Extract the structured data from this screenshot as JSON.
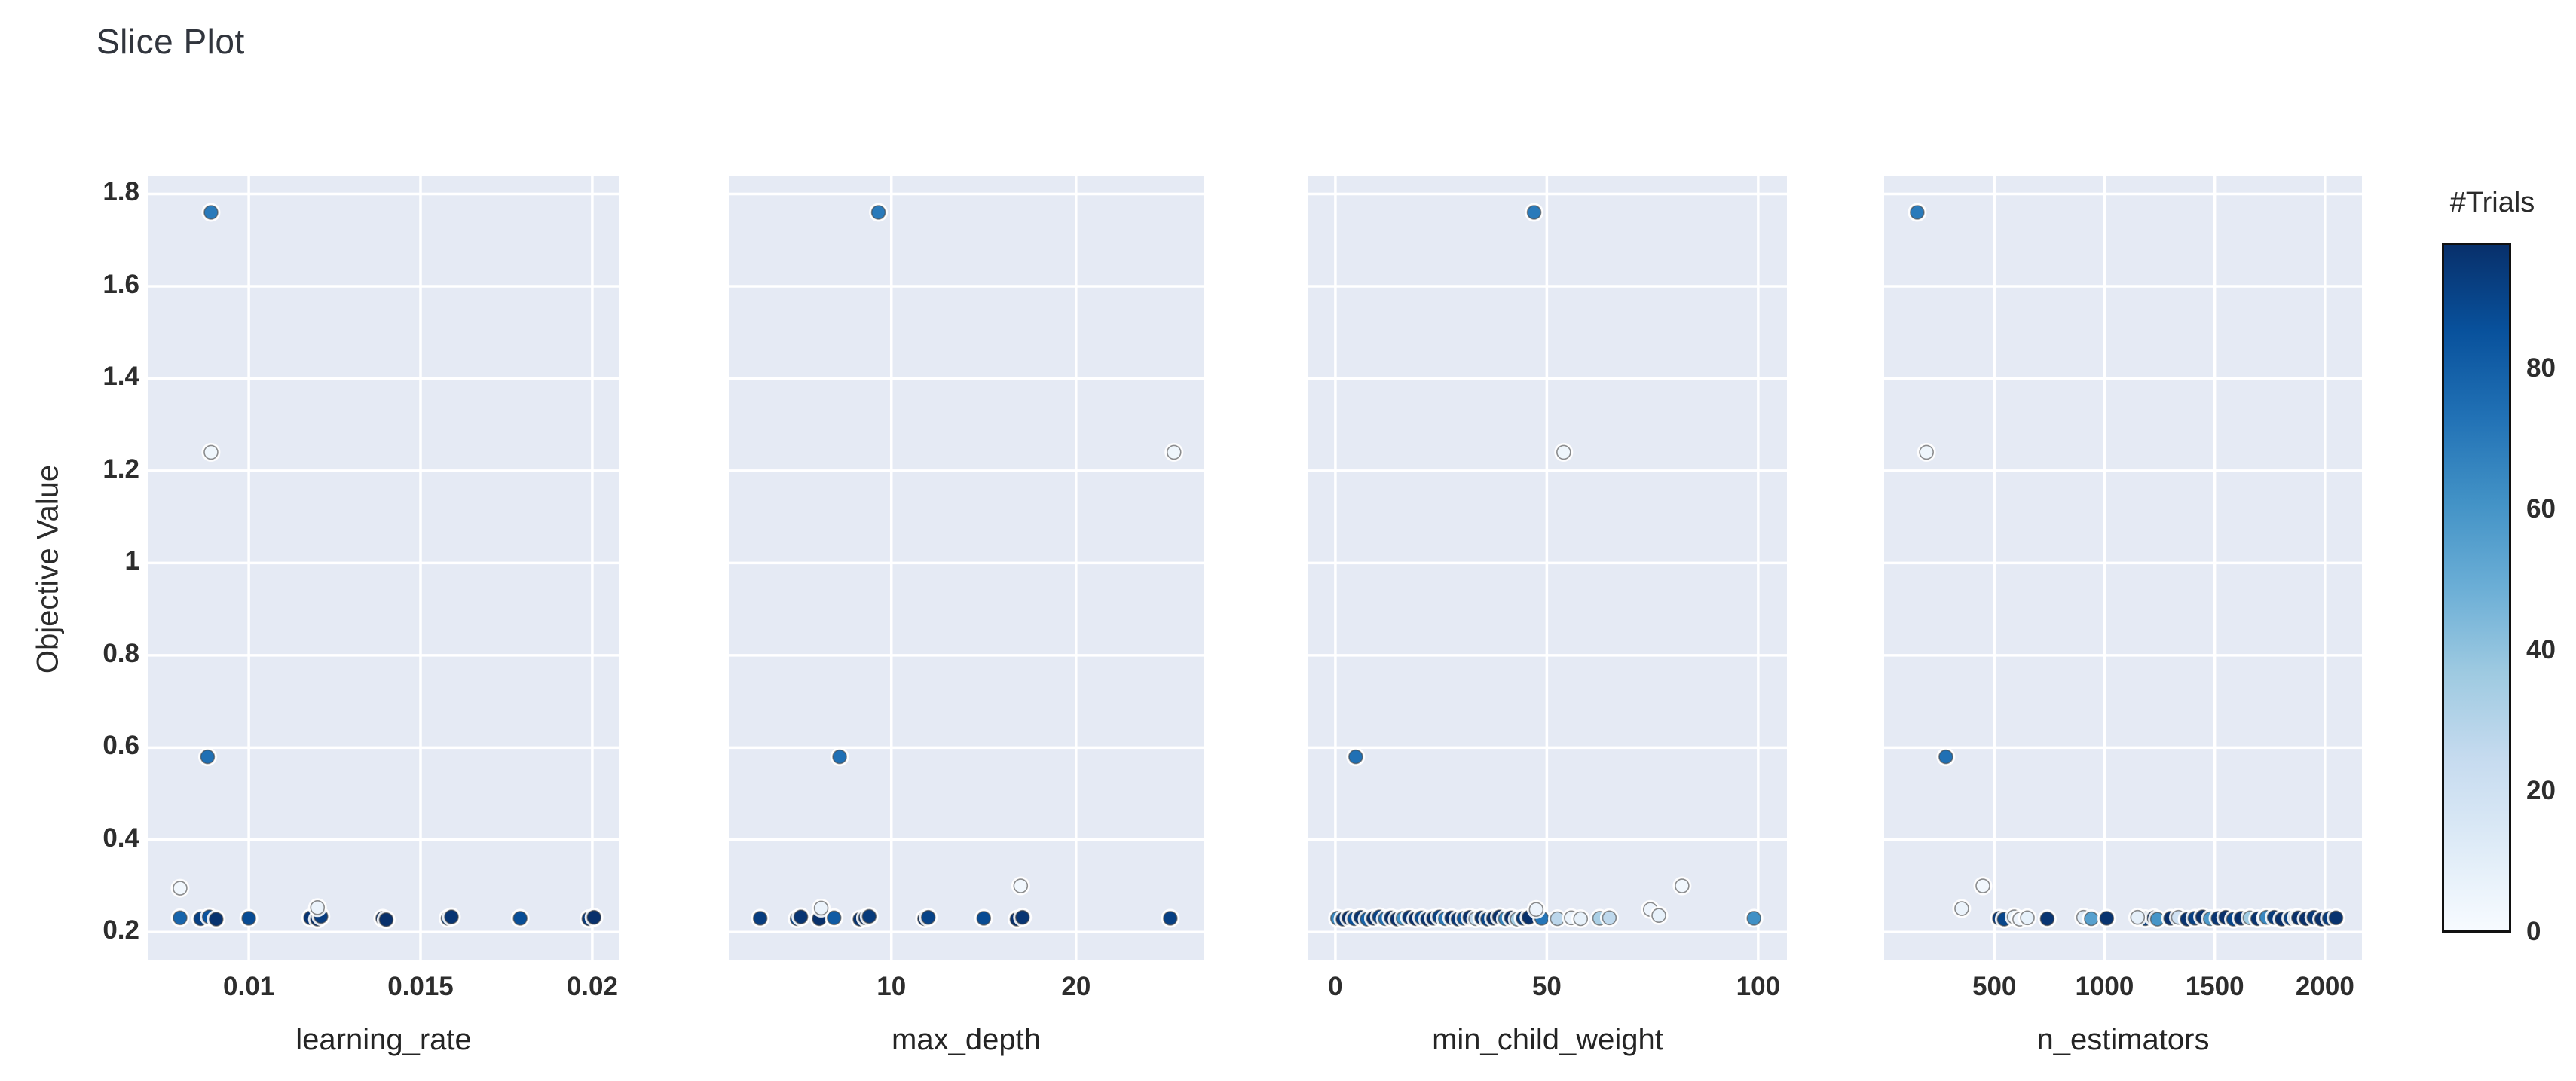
{
  "title": "Slice Plot",
  "appearance": {
    "panel_background": "#e5eaf4",
    "gridline_color": "#ffffff",
    "text_color": "#2d2d2d",
    "marker_outline": "rgba(66,66,66,0.6)",
    "marker_halo": "#ffffff",
    "colorscale_blues": [
      [
        0.0,
        [
          247,
          251,
          255
        ]
      ],
      [
        0.125,
        [
          222,
          235,
          247
        ]
      ],
      [
        0.25,
        [
          198,
          219,
          239
        ]
      ],
      [
        0.375,
        [
          158,
          202,
          225
        ]
      ],
      [
        0.5,
        [
          107,
          174,
          214
        ]
      ],
      [
        0.625,
        [
          66,
          146,
          198
        ]
      ],
      [
        0.75,
        [
          33,
          113,
          181
        ]
      ],
      [
        0.875,
        [
          8,
          81,
          156
        ]
      ],
      [
        1.0,
        [
          8,
          48,
          107
        ]
      ]
    ]
  },
  "chart_data": {
    "type": "scatter",
    "title": "Slice Plot",
    "ylabel": "Objective Value",
    "ylim": [
      0.14,
      1.84
    ],
    "yticks": [
      {
        "v": 0.2,
        "label": "0.2"
      },
      {
        "v": 0.4,
        "label": "0.4"
      },
      {
        "v": 0.6,
        "label": "0.6"
      },
      {
        "v": 0.8,
        "label": "0.8"
      },
      {
        "v": 1.0,
        "label": "1"
      },
      {
        "v": 1.2,
        "label": "1.2"
      },
      {
        "v": 1.4,
        "label": "1.4"
      },
      {
        "v": 1.6,
        "label": "1.6"
      },
      {
        "v": 1.8,
        "label": "1.8"
      }
    ],
    "grid": true,
    "legend": "colorbar-right",
    "colorbar": {
      "title": "#Trials",
      "min": 0,
      "max": 98,
      "ticks": [
        {
          "v": 0,
          "label": "0"
        },
        {
          "v": 20,
          "label": "20"
        },
        {
          "v": 40,
          "label": "40"
        },
        {
          "v": 60,
          "label": "60"
        },
        {
          "v": 80,
          "label": "80"
        }
      ]
    },
    "subplots": [
      {
        "xlabel": "learning_rate",
        "xlim": [
          0.00708,
          0.02077
        ],
        "xticks": [
          {
            "v": 0.01,
            "label": "0.01"
          },
          {
            "v": 0.015,
            "label": "0.015"
          },
          {
            "v": 0.02,
            "label": "0.02"
          }
        ],
        "points": [
          [
            0.008,
            0.231,
            78
          ],
          [
            0.0086,
            0.229,
            92
          ],
          [
            0.00885,
            0.233,
            85
          ],
          [
            0.00905,
            0.228,
            97
          ],
          [
            0.01,
            0.23,
            88
          ],
          [
            0.0118,
            0.231,
            96
          ],
          [
            0.012,
            0.228,
            99
          ],
          [
            0.0121,
            0.234,
            93
          ],
          [
            0.0139,
            0.23,
            98
          ],
          [
            0.014,
            0.227,
            99
          ],
          [
            0.0158,
            0.23,
            91
          ],
          [
            0.0159,
            0.233,
            96
          ],
          [
            0.0179,
            0.23,
            87
          ],
          [
            0.0199,
            0.229,
            95
          ],
          [
            0.02005,
            0.232,
            99
          ],
          [
            0.0089,
            1.76,
            70
          ],
          [
            0.0089,
            1.24,
            4
          ],
          [
            0.0088,
            0.58,
            74
          ],
          [
            0.008,
            0.295,
            3
          ],
          [
            0.012,
            0.253,
            6
          ]
        ]
      },
      {
        "xlabel": "max_depth",
        "xlim": [
          1.2,
          26.9
        ],
        "xticks": [
          {
            "v": 10,
            "label": "10"
          },
          {
            "v": 20,
            "label": "20"
          }
        ],
        "points": [
          [
            2.9,
            0.23,
            93
          ],
          [
            4.9,
            0.229,
            89
          ],
          [
            5.1,
            0.233,
            96
          ],
          [
            6.1,
            0.229,
            99
          ],
          [
            6.9,
            0.231,
            82
          ],
          [
            8.3,
            0.228,
            97
          ],
          [
            8.6,
            0.231,
            99
          ],
          [
            8.8,
            0.234,
            94
          ],
          [
            11.8,
            0.229,
            98
          ],
          [
            12.0,
            0.232,
            91
          ],
          [
            15.0,
            0.23,
            88
          ],
          [
            16.8,
            0.228,
            99
          ],
          [
            17.1,
            0.232,
            96
          ],
          [
            25.1,
            0.23,
            92
          ],
          [
            9.3,
            1.76,
            70
          ],
          [
            25.3,
            1.24,
            4
          ],
          [
            7.2,
            0.58,
            74
          ],
          [
            17.0,
            0.3,
            3
          ],
          [
            6.2,
            0.252,
            6
          ]
        ]
      },
      {
        "xlabel": "min_child_weight",
        "xlim": [
          -6.4,
          106.8
        ],
        "xticks": [
          {
            "v": 0,
            "label": "0"
          },
          {
            "v": 50,
            "label": "50"
          },
          {
            "v": 100,
            "label": "100"
          }
        ],
        "points": [
          [
            0.5,
            0.23,
            65
          ],
          [
            1.8,
            0.228,
            95
          ],
          [
            3.2,
            0.231,
            99
          ],
          [
            4.5,
            0.229,
            86
          ],
          [
            6.0,
            0.232,
            97
          ],
          [
            7.5,
            0.228,
            79
          ],
          [
            9.0,
            0.23,
            99
          ],
          [
            10.4,
            0.233,
            91
          ],
          [
            11.8,
            0.229,
            74
          ],
          [
            13.2,
            0.231,
            98
          ],
          [
            14.6,
            0.228,
            99
          ],
          [
            16.0,
            0.23,
            62
          ],
          [
            17.5,
            0.232,
            96
          ],
          [
            19.0,
            0.229,
            99
          ],
          [
            20.4,
            0.231,
            87
          ],
          [
            21.8,
            0.228,
            97
          ],
          [
            23.2,
            0.23,
            99
          ],
          [
            24.6,
            0.233,
            92
          ],
          [
            26.0,
            0.229,
            71
          ],
          [
            27.5,
            0.231,
            99
          ],
          [
            29.0,
            0.228,
            95
          ],
          [
            30.4,
            0.23,
            84
          ],
          [
            31.8,
            0.232,
            99
          ],
          [
            33.2,
            0.229,
            27
          ],
          [
            34.6,
            0.231,
            97
          ],
          [
            36.0,
            0.228,
            90
          ],
          [
            37.4,
            0.23,
            99
          ],
          [
            38.8,
            0.233,
            98
          ],
          [
            40.2,
            0.229,
            66
          ],
          [
            41.6,
            0.231,
            99
          ],
          [
            43.0,
            0.228,
            35
          ],
          [
            44.4,
            0.23,
            94
          ],
          [
            45.8,
            0.232,
            99
          ],
          [
            48.8,
            0.23,
            72
          ],
          [
            52.5,
            0.229,
            28
          ],
          [
            62.5,
            0.23,
            33
          ],
          [
            64.8,
            0.231,
            27
          ],
          [
            99.0,
            0.23,
            62
          ],
          [
            47.5,
            0.249,
            5
          ],
          [
            55.8,
            0.231,
            6
          ],
          [
            58.0,
            0.229,
            8
          ],
          [
            74.5,
            0.249,
            5
          ],
          [
            76.5,
            0.236,
            8
          ],
          [
            82.0,
            0.3,
            3
          ],
          [
            47.0,
            1.76,
            70
          ],
          [
            54.0,
            1.24,
            4
          ],
          [
            4.8,
            0.58,
            74
          ]
        ]
      },
      {
        "xlabel": "n_estimators",
        "xlim": [
          0,
          2168
        ],
        "xticks": [
          {
            "v": 500,
            "label": "500"
          },
          {
            "v": 1000,
            "label": "1000"
          },
          {
            "v": 1500,
            "label": "1500"
          },
          {
            "v": 2000,
            "label": "2000"
          }
        ],
        "points": [
          [
            523,
            0.23,
            95
          ],
          [
            545,
            0.228,
            90
          ],
          [
            740,
            0.229,
            96
          ],
          [
            905,
            0.232,
            12
          ],
          [
            940,
            0.229,
            55
          ],
          [
            1010,
            0.23,
            97
          ],
          [
            1185,
            0.229,
            91
          ],
          [
            1225,
            0.231,
            98
          ],
          [
            1240,
            0.228,
            60
          ],
          [
            1300,
            0.23,
            99
          ],
          [
            1335,
            0.232,
            20
          ],
          [
            1375,
            0.228,
            97
          ],
          [
            1410,
            0.23,
            92
          ],
          [
            1445,
            0.233,
            99
          ],
          [
            1480,
            0.229,
            58
          ],
          [
            1515,
            0.23,
            96
          ],
          [
            1550,
            0.232,
            99
          ],
          [
            1585,
            0.228,
            90
          ],
          [
            1620,
            0.23,
            99
          ],
          [
            1660,
            0.231,
            36
          ],
          [
            1695,
            0.229,
            97
          ],
          [
            1730,
            0.23,
            99
          ],
          [
            1735,
            0.232,
            65
          ],
          [
            1770,
            0.232,
            94
          ],
          [
            1805,
            0.228,
            99
          ],
          [
            1845,
            0.23,
            91
          ],
          [
            1870,
            0.231,
            55
          ],
          [
            1880,
            0.231,
            98
          ],
          [
            1915,
            0.229,
            99
          ],
          [
            1950,
            0.232,
            95
          ],
          [
            1985,
            0.228,
            99
          ],
          [
            2020,
            0.23,
            93
          ],
          [
            2050,
            0.231,
            97
          ],
          [
            590,
            0.233,
            7
          ],
          [
            615,
            0.228,
            5
          ],
          [
            650,
            0.231,
            8
          ],
          [
            1150,
            0.232,
            9
          ],
          [
            352,
            0.251,
            6
          ],
          [
            448,
            0.3,
            3
          ],
          [
            150,
            1.76,
            70
          ],
          [
            192,
            1.24,
            4
          ],
          [
            280,
            0.58,
            74
          ]
        ]
      }
    ]
  }
}
